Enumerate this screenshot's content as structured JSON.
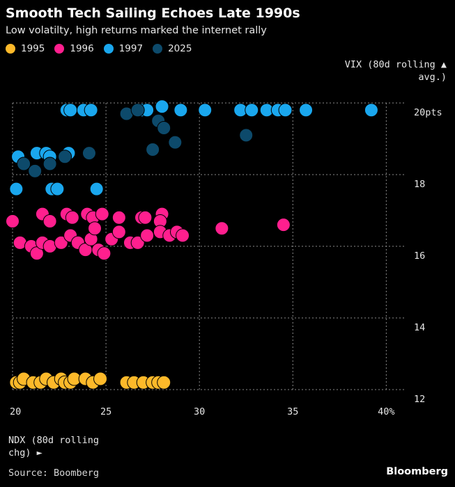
{
  "title": "Smooth Tech Sailing Echoes Late 1990s",
  "subtitle": "Low volatilty, high returns marked the internet rally",
  "legend": [
    {
      "label": "1995",
      "color": "#FDB92A"
    },
    {
      "label": "1996",
      "color": "#FF1F8E"
    },
    {
      "label": "1997",
      "color": "#1AA7EE"
    },
    {
      "label": "2025",
      "color": "#0D4A6B"
    }
  ],
  "y_axis_title_line1": "VIX (80d rolling ▲",
  "y_axis_title_line2": "avg.)",
  "x_axis_title_line1": "NDX (80d rolling",
  "x_axis_title_line2": "chg) ►",
  "source": "Source: Boomberg",
  "brand": "Bloomberg",
  "chart_data": {
    "type": "scatter",
    "xlim": [
      20,
      42
    ],
    "ylim": [
      12,
      20
    ],
    "x_ticks": [
      20,
      25,
      30,
      35,
      40
    ],
    "x_tick_labels": [
      "20",
      "25",
      "30",
      "35",
      "40%"
    ],
    "y_ticks": [
      12,
      14,
      16,
      18,
      20
    ],
    "y_tick_labels": [
      "12",
      "14",
      "16",
      "18",
      "20pts"
    ],
    "grid": "dotted",
    "xlabel": "NDX (80d rolling chg)",
    "ylabel": "VIX (80d rolling avg.)",
    "series": [
      {
        "name": "1997",
        "color": "#1AA7EE",
        "points": [
          [
            22.9,
            19.8
          ],
          [
            23.1,
            19.8
          ],
          [
            23.8,
            19.8
          ],
          [
            24.2,
            19.8
          ],
          [
            26.9,
            19.8
          ],
          [
            27.2,
            19.8
          ],
          [
            28.0,
            19.9
          ],
          [
            29.0,
            19.8
          ],
          [
            30.3,
            19.8
          ],
          [
            32.2,
            19.8
          ],
          [
            32.8,
            19.8
          ],
          [
            33.6,
            19.8
          ],
          [
            34.2,
            19.8
          ],
          [
            34.6,
            19.8
          ],
          [
            35.7,
            19.8
          ],
          [
            39.2,
            19.8
          ],
          [
            20.3,
            18.5
          ],
          [
            21.3,
            18.6
          ],
          [
            21.8,
            18.6
          ],
          [
            22.0,
            18.5
          ],
          [
            23.0,
            18.6
          ],
          [
            20.2,
            17.6
          ],
          [
            22.1,
            17.6
          ],
          [
            22.4,
            17.6
          ],
          [
            24.5,
            17.6
          ]
        ]
      },
      {
        "name": "2025",
        "color": "#0D4A6B",
        "points": [
          [
            26.1,
            19.7
          ],
          [
            26.7,
            19.8
          ],
          [
            27.8,
            19.5
          ],
          [
            28.1,
            19.3
          ],
          [
            32.5,
            19.1
          ],
          [
            28.7,
            18.9
          ],
          [
            27.5,
            18.7
          ],
          [
            24.1,
            18.6
          ],
          [
            22.8,
            18.5
          ],
          [
            22.0,
            18.3
          ],
          [
            21.2,
            18.1
          ],
          [
            20.6,
            18.3
          ]
        ]
      },
      {
        "name": "1996",
        "color": "#FF1F8E",
        "points": [
          [
            20.0,
            16.7
          ],
          [
            21.6,
            16.9
          ],
          [
            22.0,
            16.7
          ],
          [
            22.9,
            16.9
          ],
          [
            23.2,
            16.8
          ],
          [
            24.0,
            16.9
          ],
          [
            24.3,
            16.8
          ],
          [
            24.8,
            16.9
          ],
          [
            25.7,
            16.8
          ],
          [
            26.9,
            16.8
          ],
          [
            27.1,
            16.8
          ],
          [
            28.0,
            16.9
          ],
          [
            27.9,
            16.7
          ],
          [
            20.4,
            16.1
          ],
          [
            21.0,
            16.0
          ],
          [
            21.3,
            15.8
          ],
          [
            21.6,
            16.1
          ],
          [
            22.0,
            16.0
          ],
          [
            22.6,
            16.1
          ],
          [
            23.1,
            16.3
          ],
          [
            23.5,
            16.1
          ],
          [
            23.9,
            15.9
          ],
          [
            24.2,
            16.2
          ],
          [
            24.4,
            16.5
          ],
          [
            24.6,
            15.9
          ],
          [
            24.9,
            15.8
          ],
          [
            25.3,
            16.2
          ],
          [
            25.7,
            16.4
          ],
          [
            26.3,
            16.1
          ],
          [
            26.7,
            16.1
          ],
          [
            27.2,
            16.3
          ],
          [
            27.9,
            16.4
          ],
          [
            28.4,
            16.3
          ],
          [
            28.8,
            16.4
          ],
          [
            29.1,
            16.3
          ],
          [
            31.2,
            16.5
          ],
          [
            34.5,
            16.6
          ]
        ]
      },
      {
        "name": "1995",
        "color": "#FDB92A",
        "points": [
          [
            20.2,
            12.2
          ],
          [
            20.4,
            12.2
          ],
          [
            20.6,
            12.3
          ],
          [
            21.1,
            12.2
          ],
          [
            21.5,
            12.2
          ],
          [
            21.8,
            12.3
          ],
          [
            22.2,
            12.2
          ],
          [
            22.6,
            12.3
          ],
          [
            22.8,
            12.2
          ],
          [
            23.1,
            12.2
          ],
          [
            23.3,
            12.3
          ],
          [
            23.9,
            12.3
          ],
          [
            24.3,
            12.2
          ],
          [
            24.7,
            12.3
          ],
          [
            26.1,
            12.2
          ],
          [
            26.5,
            12.2
          ],
          [
            27.0,
            12.2
          ],
          [
            27.5,
            12.2
          ],
          [
            27.8,
            12.2
          ],
          [
            28.1,
            12.2
          ]
        ]
      }
    ]
  }
}
